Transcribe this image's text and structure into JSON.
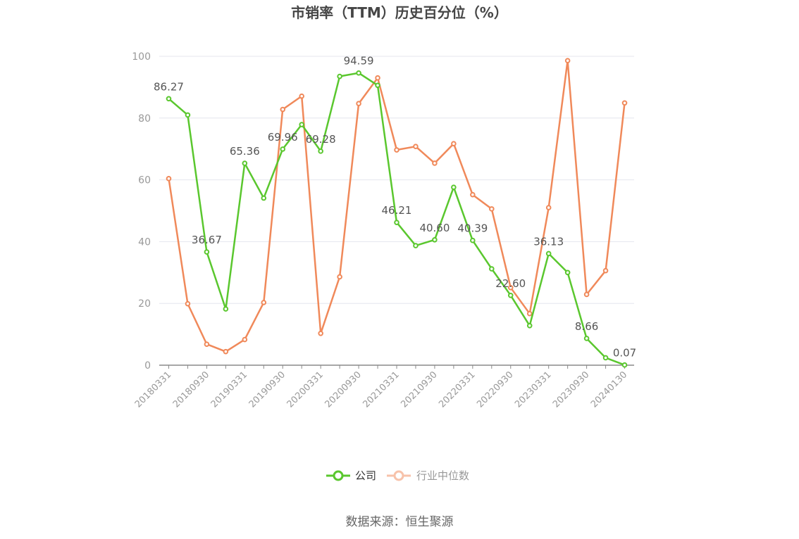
{
  "chart_data": {
    "type": "line",
    "title": "市销率（TTM）历史百分位（%）",
    "x": [
      "20180331",
      "20180630",
      "20180930",
      "20181231",
      "20190331",
      "20190630",
      "20190930",
      "20191231",
      "20200331",
      "20200630",
      "20200930",
      "20201231",
      "20210331",
      "20210630",
      "20210930",
      "20211231",
      "20220331",
      "20220630",
      "20220930",
      "20221231",
      "20230331",
      "20230630",
      "20230930",
      "20231231",
      "20240130"
    ],
    "x_tick_labels": [
      "20180331",
      "20180930",
      "20190331",
      "20190930",
      "20200331",
      "20200930",
      "20210331",
      "20210930",
      "20220331",
      "20220930",
      "20230331",
      "20230930",
      "20240130"
    ],
    "ylim": [
      0,
      100
    ],
    "yticks": [
      0,
      20,
      40,
      60,
      80,
      100
    ],
    "grid": true,
    "legend_position": "bottom-center",
    "series": [
      {
        "name": "公司",
        "color": "#5ac72e",
        "values": [
          86.27,
          81.0,
          36.67,
          18.2,
          65.36,
          54.1,
          69.96,
          77.9,
          69.28,
          93.5,
          94.59,
          90.6,
          46.21,
          38.7,
          40.6,
          57.6,
          40.39,
          31.2,
          22.6,
          12.8,
          36.13,
          30.0,
          8.66,
          2.4,
          0.07
        ],
        "labels": [
          "86.27",
          "",
          "36.67",
          "",
          "65.36",
          "",
          "69.96",
          "",
          "69.28",
          "",
          "94.59",
          "",
          "46.21",
          "",
          "40.60",
          "",
          "40.39",
          "",
          "22.60",
          "",
          "36.13",
          "",
          "8.66",
          "",
          "0.07"
        ]
      },
      {
        "name": "行业中位数",
        "color": "#f0895a",
        "values": [
          60.4,
          19.9,
          6.8,
          4.4,
          8.3,
          20.3,
          82.8,
          87.1,
          10.3,
          28.6,
          84.7,
          93.0,
          69.7,
          70.8,
          65.4,
          71.7,
          55.2,
          50.6,
          25.1,
          16.7,
          51.0,
          98.6,
          22.9,
          30.6,
          84.9
        ]
      }
    ]
  },
  "source": "数据来源：恒生聚源"
}
